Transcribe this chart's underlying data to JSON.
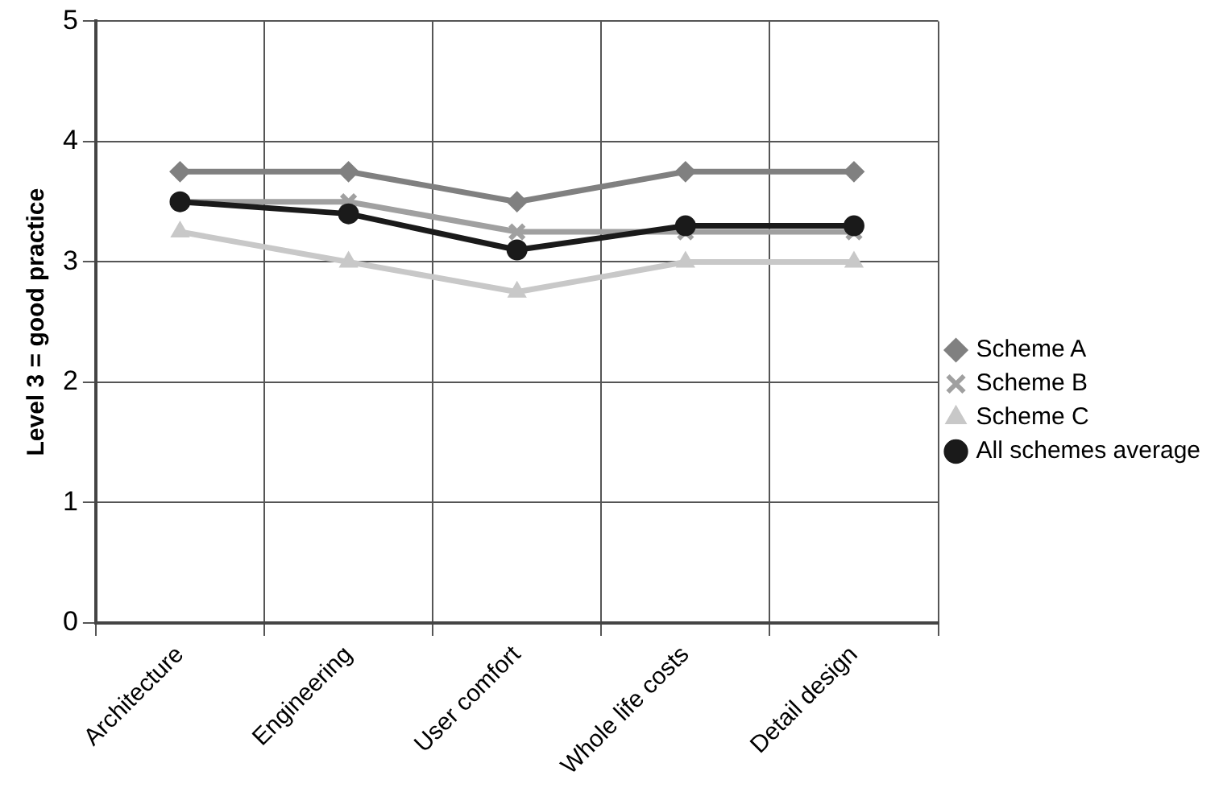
{
  "chart_data": {
    "type": "line",
    "ylabel": "Level 3 = good practice",
    "categories": [
      "Architecture",
      "Engineering",
      "User comfort",
      "Whole life costs",
      "Detail design"
    ],
    "series": [
      {
        "name": "Scheme A",
        "color": "#808080",
        "marker": "diamond",
        "values": [
          3.75,
          3.75,
          3.5,
          3.75,
          3.75
        ]
      },
      {
        "name": "Scheme B",
        "color": "#a0a0a0",
        "marker": "cross",
        "values": [
          3.5,
          3.5,
          3.25,
          3.25,
          3.25
        ]
      },
      {
        "name": "Scheme C",
        "color": "#c8c8c8",
        "marker": "triangle",
        "values": [
          3.25,
          3.0,
          2.75,
          3.0,
          3.0
        ]
      },
      {
        "name": "All schemes average",
        "color": "#1a1a1a",
        "marker": "circle",
        "values": [
          3.5,
          3.4,
          3.1,
          3.3,
          3.3
        ]
      }
    ],
    "ylim": [
      0,
      5
    ],
    "yticks": [
      0,
      1,
      2,
      3,
      4,
      5
    ],
    "grid": true,
    "legend": "right",
    "line_style": "solid"
  }
}
